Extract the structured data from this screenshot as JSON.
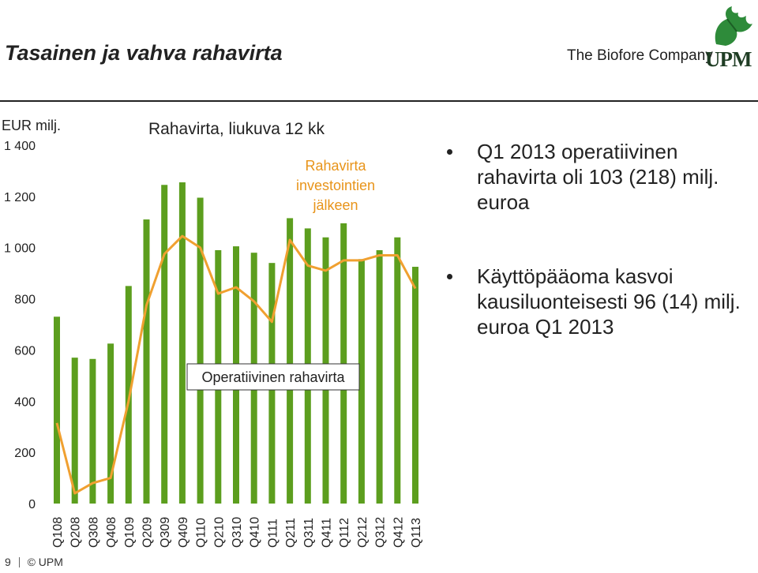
{
  "header": {
    "title": "Tasainen ja vahva rahavirta",
    "tagline": "The Biofore Company",
    "logo_text": "UPM"
  },
  "unit_label": "EUR milj.",
  "footer": {
    "page": "9",
    "copyright": "© UPM"
  },
  "bullets": [
    "Q1 2013 operatiivinen rahavirta oli 103 (218) milj. euroa",
    "Käyttöpääoma kasvoi kausiluonteisesti 96 (14) milj. euroa Q1 2013"
  ],
  "colors": {
    "bar": "#5c9e1e",
    "line": "#f0a030",
    "text": "#222222",
    "annotation_line": "#e8941a"
  },
  "chart_data": {
    "type": "bar",
    "title": "Rahavirta, liukuva 12 kk",
    "ylim": [
      0,
      1400
    ],
    "yticks": [
      "0",
      "200",
      "400",
      "600",
      "800",
      "1 000",
      "1 200",
      "1 400"
    ],
    "categories": [
      "Q108",
      "Q208",
      "Q308",
      "Q408",
      "Q109",
      "Q209",
      "Q309",
      "Q409",
      "Q110",
      "Q210",
      "Q310",
      "Q410",
      "Q111",
      "Q211",
      "Q311",
      "Q411",
      "Q112",
      "Q212",
      "Q312",
      "Q412",
      "Q113"
    ],
    "series": [
      {
        "name": "Operatiivinen rahavirta",
        "type": "bar",
        "values": [
          730,
          570,
          565,
          625,
          850,
          1110,
          1245,
          1255,
          1195,
          990,
          1005,
          980,
          940,
          1115,
          1075,
          1040,
          1095,
          955,
          990,
          1040,
          925
        ]
      },
      {
        "name": "Rahavirta investointien jälkeen",
        "type": "line",
        "values": [
          315,
          40,
          80,
          100,
          400,
          775,
          975,
          1045,
          1000,
          820,
          845,
          790,
          710,
          1030,
          930,
          910,
          950,
          950,
          970,
          970,
          840
        ]
      }
    ],
    "annotations": [
      "Rahavirta investointien jälkeen",
      "Operatiivinen rahavirta"
    ]
  }
}
